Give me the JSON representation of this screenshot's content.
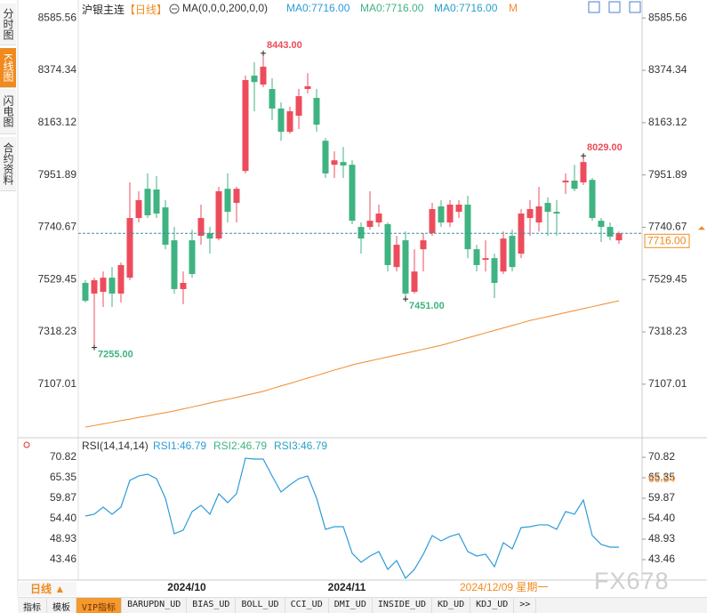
{
  "sidebar": {
    "tabs": [
      "分时图",
      "K线图",
      "闪电图",
      "合约资料"
    ]
  },
  "header": {
    "symbol": "沪银主连",
    "period": "【日线】",
    "ma_setting": "MA(0,0,0,200,0,0)",
    "ma_values": [
      "MA0:7716.00",
      "MA0:7716.00",
      "MA0:7716.00",
      "M"
    ]
  },
  "chart_data": [
    {
      "type": "candlestick",
      "categories": [
        null,
        null,
        null,
        null,
        null,
        null,
        null,
        null,
        null,
        null,
        null,
        "2024/10",
        null,
        null,
        null,
        null,
        null,
        null,
        null,
        null,
        null,
        null,
        null,
        null,
        null,
        null,
        null,
        null,
        null,
        "2024/11",
        null,
        null,
        null,
        null,
        null,
        null,
        null,
        null,
        null,
        null,
        null,
        null,
        null,
        null,
        null,
        null,
        null,
        null,
        null,
        null,
        null,
        null,
        null,
        null,
        null,
        null,
        null,
        null,
        null,
        null,
        null
      ],
      "open": [
        7516,
        7473,
        7480,
        7537,
        7473,
        7537,
        7778,
        7896,
        7893,
        7821,
        7688,
        7491,
        7688,
        7706,
        7717,
        7695,
        7896,
        7839,
        7968,
        8353,
        8317,
        8299,
        8220,
        8126,
        8191,
        8299,
        8263,
        8090,
        7993,
        8004,
        7993,
        7742,
        7742,
        7760,
        7753,
        7580,
        7688,
        7480,
        7652,
        7717,
        7825,
        7760,
        7803,
        7832,
        7652,
        7609,
        7616,
        7562,
        7706,
        7634,
        7778,
        7760,
        7839,
        7803,
        7922,
        7929,
        7922,
        7932,
        7767,
        7742,
        7688
      ],
      "high": [
        7527,
        7537,
        7562,
        7580,
        7598,
        7922,
        7886,
        7958,
        7947,
        7850,
        7742,
        7562,
        7731,
        7832,
        7742,
        7904,
        7958,
        7904,
        8353,
        8407,
        8443,
        8342,
        8245,
        8227,
        8299,
        8363,
        8299,
        8101,
        8047,
        8065,
        8011,
        7760,
        7886,
        7832,
        7760,
        7706,
        7724,
        7652,
        7717,
        7839,
        7850,
        7850,
        7850,
        7868,
        7670,
        7688,
        7634,
        7724,
        7731,
        7814,
        7850,
        7904,
        7861,
        7850,
        7958,
        7993,
        8029,
        7940,
        7778,
        7760,
        7724
      ],
      "low": [
        7437,
        7255,
        7419,
        7419,
        7437,
        7527,
        7760,
        7778,
        7778,
        7652,
        7473,
        7430,
        7537,
        7670,
        7634,
        7688,
        7760,
        7760,
        7958,
        8209,
        8306,
        8173,
        8090,
        8119,
        8137,
        8281,
        8126,
        7940,
        7940,
        7940,
        7753,
        7634,
        7731,
        7742,
        7562,
        7562,
        7451,
        7473,
        7562,
        7706,
        7742,
        7742,
        7778,
        7616,
        7562,
        7562,
        7455,
        7552,
        7562,
        7616,
        7706,
        7724,
        7706,
        7706,
        7875,
        7886,
        7911,
        7767,
        7681,
        7688,
        7674
      ],
      "close": [
        7444,
        7527,
        7537,
        7473,
        7588,
        7778,
        7850,
        7789,
        7796,
        7670,
        7491,
        7516,
        7552,
        7778,
        7695,
        7886,
        7803,
        7896,
        8335,
        8327,
        8389,
        8220,
        8126,
        8209,
        8270,
        8310,
        8155,
        7958,
        8011,
        7990,
        7767,
        7695,
        7767,
        7796,
        7588,
        7670,
        7473,
        7562,
        7688,
        7814,
        7760,
        7832,
        7832,
        7652,
        7588,
        7616,
        7516,
        7695,
        7580,
        7796,
        7814,
        7825,
        7803,
        7796,
        7929,
        7896,
        8004,
        7778,
        7742,
        7703,
        7716
      ],
      "up_color": "#ec4c5c",
      "down_color": "#3fb382",
      "ma": {
        "color": "#f08a2c",
        "values": [
          6934,
          6940,
          6947,
          6953,
          6960,
          6966,
          6973,
          6979,
          6986,
          6992,
          6999,
          7007,
          7015,
          7023,
          7031,
          7039,
          7046,
          7054,
          7062,
          7070,
          7078,
          7089,
          7100,
          7110,
          7121,
          7132,
          7142,
          7153,
          7164,
          7174,
          7185,
          7193,
          7201,
          7209,
          7217,
          7225,
          7232,
          7240,
          7248,
          7256,
          7264,
          7274,
          7284,
          7294,
          7304,
          7314,
          7324,
          7334,
          7344,
          7354,
          7364,
          7372,
          7380,
          7388,
          7396,
          7404,
          7412,
          7420,
          7428,
          7436,
          7444
        ]
      },
      "ylim": [
        6898,
        8608
      ],
      "yticks": [
        8585.56,
        8374.34,
        8163.12,
        7951.89,
        7740.67,
        7529.45,
        7318.23,
        7107.01
      ],
      "annotations": [
        {
          "value": 8443,
          "label": "8443.00"
        },
        {
          "value": 7255,
          "label": "7255.00"
        },
        {
          "value": 7451,
          "label": "7451.00"
        },
        {
          "value": 8029,
          "label": "8029.00"
        }
      ],
      "last_price": {
        "value": 7716,
        "label": "7716.00"
      },
      "cursor_date": "2024/12/09 星期一"
    },
    {
      "type": "line",
      "title": "RSI(14,14,14)",
      "series": [
        {
          "name": "RSI1:46.79",
          "color": "#2e9bd8",
          "values": [
            55.12,
            55.6,
            57.5,
            55.6,
            57.5,
            64.64,
            65.83,
            66.3,
            65.11,
            59.88,
            50.37,
            51.32,
            56.31,
            57.98,
            55.6,
            61.07,
            58.69,
            61.07,
            70.58,
            70.34,
            70.34,
            65.83,
            61.54,
            63.45,
            65.11,
            65.83,
            59.88,
            51.56,
            52.27,
            52.27,
            45.13,
            42.76,
            44.42,
            45.61,
            40.85,
            43.23,
            38.48,
            40.85,
            44.9,
            49.89,
            48.46,
            49.65,
            50.37,
            45.61,
            44.42,
            44.9,
            41.57,
            47.99,
            46.32,
            52.03,
            52.27,
            52.75,
            52.75,
            51.56,
            56.31,
            55.6,
            59.4,
            49.89,
            47.51,
            46.79,
            46.79
          ]
        }
      ],
      "legend": [
        {
          "name": "RSI2:46.79",
          "color": "#3fb382"
        },
        {
          "name": "RSI3:46.79",
          "color": "#2aa0c8"
        }
      ],
      "ylim": [
        37.99,
        74.15
      ],
      "yticks": [
        70.82,
        65.35,
        59.87,
        {
          "value": 54.4,
          "label": "54.40"
        },
        48.93,
        43.46
      ],
      "marker": {
        "value": 66.54,
        "label": "66.54",
        "color": "#f08a2c"
      }
    }
  ],
  "footer": {
    "period_button": "日线 ▲",
    "watermark": "FX678",
    "tabs": [
      "指标",
      "模板",
      "VIP指标",
      "BARUPDN_UD",
      "BIAS_UD",
      "BOLL_UD",
      "CCI_UD",
      "DMI_UD",
      "INSIDE_UD",
      "KD_UD",
      "KDJ_UD",
      ">>"
    ]
  }
}
